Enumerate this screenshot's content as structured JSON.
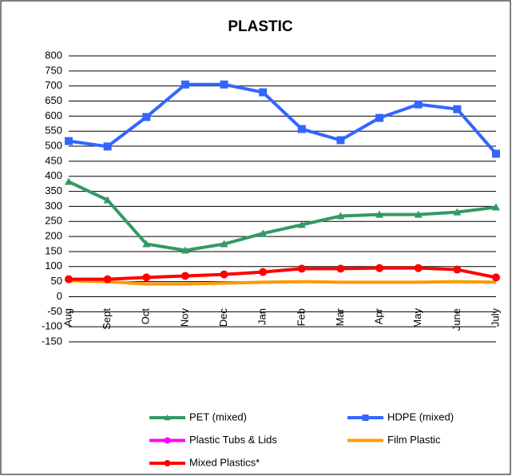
{
  "chart_data": {
    "type": "line",
    "title": "PLASTIC",
    "categories": [
      "Aug",
      "Sept",
      "Oct",
      "Nov",
      "Dec",
      "Jan",
      "Feb",
      "Mar",
      "Apr",
      "May",
      "June",
      "July"
    ],
    "series": [
      {
        "name": "PET (mixed)",
        "color": "#339966",
        "marker": "triangle",
        "values": [
          382,
          321,
          175,
          154,
          175,
          210,
          239,
          268,
          273,
          273,
          281,
          297
        ]
      },
      {
        "name": "HDPE (mixed)",
        "color": "#3366ff",
        "marker": "square",
        "values": [
          517,
          499,
          597,
          705,
          705,
          679,
          557,
          520,
          594,
          639,
          623,
          475
        ]
      },
      {
        "name": "Plastic Tubs & Lids",
        "color": "#ff00ff",
        "marker": "circle",
        "values": [
          null,
          null,
          null,
          null,
          null,
          null,
          null,
          null,
          null,
          null,
          null,
          null
        ]
      },
      {
        "name": "Film Plastic",
        "color": "#ff9900",
        "marker": "none",
        "values": [
          53,
          50,
          42,
          42,
          45,
          48,
          50,
          48,
          48,
          48,
          50,
          48
        ]
      },
      {
        "name": "Mixed Plastics*",
        "color": "#ff0000",
        "marker": "circle",
        "values": [
          58,
          58,
          64,
          69,
          74,
          82,
          93,
          93,
          95,
          95,
          90,
          64
        ]
      }
    ],
    "ylim": [
      -150,
      800
    ],
    "yticks": [
      -150,
      -100,
      -50,
      0,
      50,
      100,
      150,
      200,
      250,
      300,
      350,
      400,
      450,
      500,
      550,
      600,
      650,
      700,
      750,
      800
    ],
    "grid": true,
    "legend": "bottom"
  }
}
